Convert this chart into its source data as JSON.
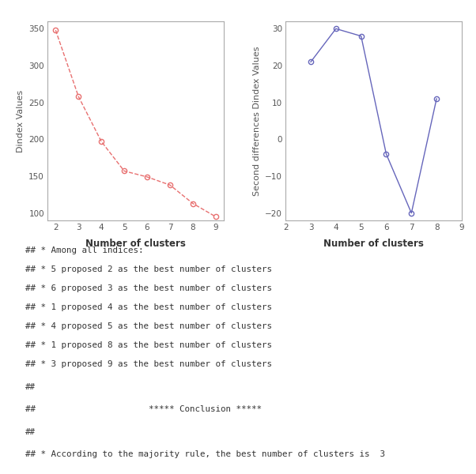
{
  "left_x": [
    2,
    3,
    4,
    5,
    6,
    7,
    8,
    9
  ],
  "left_y": [
    348,
    258,
    197,
    157,
    149,
    138,
    113,
    95
  ],
  "left_color": "#E87070",
  "left_ylabel": "Dindex Values",
  "left_xlabel": "Number of clusters",
  "left_ylim": [
    90,
    360
  ],
  "left_yticks": [
    100,
    150,
    200,
    250,
    300,
    350
  ],
  "right_x": [
    3,
    4,
    5,
    6,
    7,
    8
  ],
  "right_y": [
    21,
    30,
    28,
    -4,
    -20,
    11
  ],
  "right_color": "#6666BB",
  "right_ylabel": "Second differences Dindex Values",
  "right_xlabel": "Number of clusters",
  "right_ylim": [
    -22,
    32
  ],
  "right_yticks": [
    -20,
    -10,
    0,
    10,
    20,
    30
  ],
  "right_xticks": [
    2,
    3,
    4,
    5,
    6,
    7,
    8,
    9
  ],
  "text_lines": [
    "## * Among all indices:",
    "## * 5 proposed 2 as the best number of clusters",
    "## * 6 proposed 3 as the best number of clusters",
    "## * 1 proposed 4 as the best number of clusters",
    "## * 4 proposed 5 as the best number of clusters",
    "## * 1 proposed 8 as the best number of clusters",
    "## * 3 proposed 9 as the best number of clusters",
    "##",
    "##                      ***** Conclusion *****",
    "##",
    "## * According to the majority rule, the best number of clusters is  3"
  ],
  "text_bg_color": "#EBEBEB",
  "text_color": "#333333",
  "text_fontsize": 7.8,
  "fig_bg": "#FFFFFF",
  "spine_color": "#AAAAAA"
}
